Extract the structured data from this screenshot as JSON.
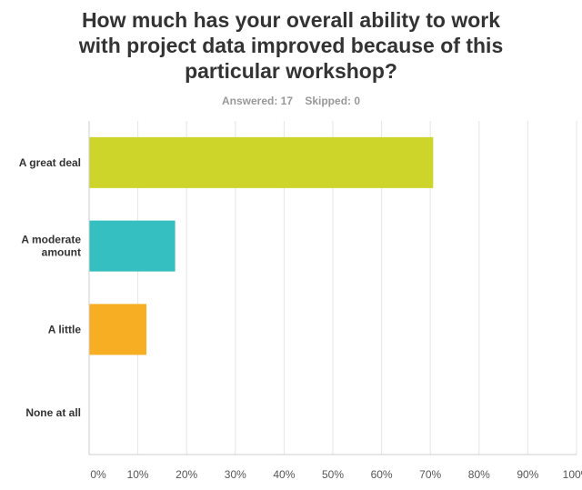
{
  "question": {
    "title_lines": [
      "How much has your overall ability to work",
      "with project data improved because of this",
      "particular workshop?"
    ],
    "answered_label": "Answered: 17",
    "skipped_label": "Skipped: 0"
  },
  "chart_data": {
    "type": "bar",
    "orientation": "horizontal",
    "title": "How much has your overall ability to work with project data improved because of this particular workshop?",
    "categories": [
      [
        "A great deal"
      ],
      [
        "A moderate",
        "amount"
      ],
      [
        "A little"
      ],
      [
        "None at all"
      ]
    ],
    "values": [
      70.59,
      17.65,
      11.76,
      0
    ],
    "colors": [
      "#cdd52a",
      "#36bfc0",
      "#f7ae22",
      "#9b9b9b"
    ],
    "xlim": [
      0,
      100
    ],
    "xticks": [
      "0%",
      "10%",
      "20%",
      "30%",
      "40%",
      "50%",
      "60%",
      "70%",
      "80%",
      "90%",
      "100%"
    ],
    "grid": true,
    "grid_color": "#e5e5e5",
    "axis_color": "#cfcfcf",
    "xlabel": "",
    "ylabel": ""
  }
}
